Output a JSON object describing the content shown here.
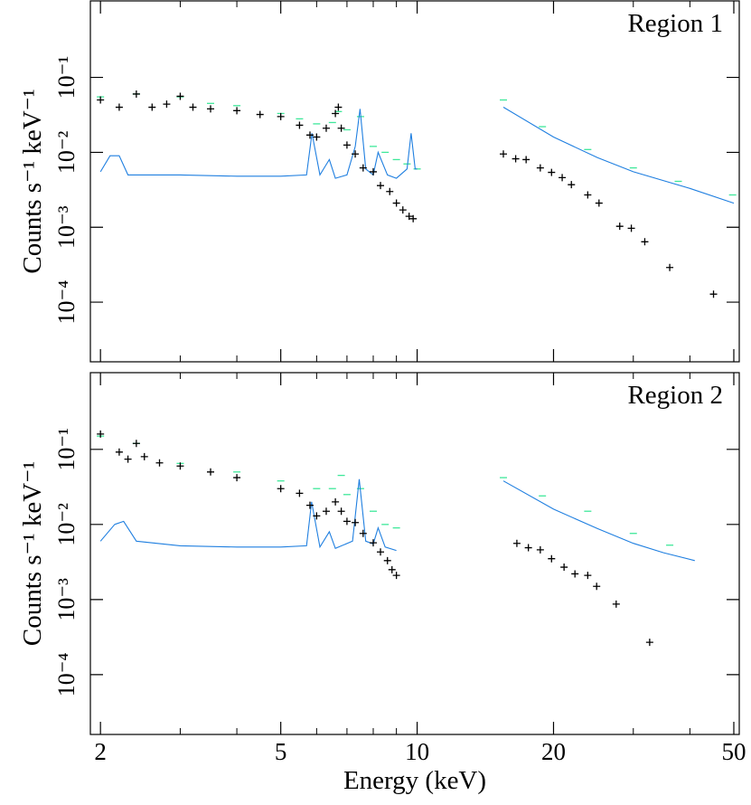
{
  "chart_data": [
    {
      "type": "line",
      "annotation": "Region 1",
      "ylabel": "Counts s⁻¹ keV⁻¹",
      "xscale": "log",
      "yscale": "log",
      "xlim": [
        1.9,
        51.4
      ],
      "ylim": [
        1.6e-05,
        1.05
      ],
      "xticks": [
        2,
        5,
        10,
        20,
        50
      ],
      "xminor": [
        3,
        4,
        6,
        7,
        8,
        9,
        30,
        40
      ],
      "show_xtick_labels": false,
      "yticks": [
        {
          "value": 0.1,
          "label": "10⁻¹"
        },
        {
          "value": 0.01,
          "label": "10⁻²"
        },
        {
          "value": 0.001,
          "label": "10⁻³"
        },
        {
          "value": 0.0001,
          "label": "10⁻⁴"
        }
      ],
      "series": [
        {
          "marker": "dash",
          "color": "#3ee89a",
          "x": [
            2,
            2.4,
            3,
            3.5,
            4,
            5,
            5.5,
            6,
            6.5,
            6.7,
            7,
            7.5,
            8,
            8.5,
            9,
            9.5,
            10
          ],
          "values": [
            0.055,
            0.06,
            0.055,
            0.045,
            0.042,
            0.033,
            0.028,
            0.024,
            0.025,
            0.035,
            0.02,
            0.03,
            0.012,
            0.01,
            0.008,
            0.007,
            0.006
          ]
        },
        {
          "marker": "dash",
          "color": "#3ee89a",
          "x": [
            15.5,
            18.9,
            23.8,
            30.0,
            37.7,
            49.7
          ],
          "values": [
            0.05,
            0.022,
            0.0109,
            0.0062,
            0.0041,
            0.0027
          ]
        },
        {
          "marker": "line",
          "color": "#1f7fe0",
          "x": [
            2,
            2.1,
            2.2,
            2.3,
            3,
            4,
            5,
            5.7,
            5.86,
            6.1,
            6.4,
            6.6,
            7.0,
            7.3,
            7.48,
            7.7,
            8.0,
            8.2,
            8.6,
            9.0,
            9.5,
            9.7,
            9.9,
            10
          ],
          "values": [
            0.0055,
            0.009,
            0.009,
            0.005,
            0.005,
            0.0048,
            0.0048,
            0.005,
            0.018,
            0.005,
            0.008,
            0.0045,
            0.005,
            0.012,
            0.038,
            0.006,
            0.005,
            0.01,
            0.005,
            0.0045,
            0.006,
            0.018,
            0.006,
            0.006
          ]
        },
        {
          "marker": "line",
          "color": "#1f7fe0",
          "x": [
            15.5,
            20,
            25,
            30,
            40,
            50
          ],
          "values": [
            0.04,
            0.016,
            0.0085,
            0.0055,
            0.0033,
            0.0021
          ]
        },
        {
          "marker": "cross",
          "color": "#000000",
          "x": [
            2,
            2.2,
            2.4,
            2.6,
            2.8,
            3.0,
            3.2,
            3.5,
            4,
            4.5,
            5,
            5.5,
            5.8,
            6.0,
            6.3,
            6.6,
            6.7,
            6.8,
            7.0,
            7.3,
            7.6,
            8.0,
            8.3,
            8.7,
            9.0,
            9.3,
            9.6,
            9.8
          ],
          "values": [
            0.05,
            0.04,
            0.06,
            0.04,
            0.044,
            0.056,
            0.04,
            0.038,
            0.036,
            0.032,
            0.03,
            0.023,
            0.017,
            0.016,
            0.021,
            0.033,
            0.04,
            0.021,
            0.0125,
            0.0095,
            0.0062,
            0.0055,
            0.0036,
            0.003,
            0.0021,
            0.0017,
            0.0014,
            0.0013
          ]
        },
        {
          "marker": "cross",
          "color": "#000000",
          "x": [
            15.5,
            16.5,
            17.4,
            18.7,
            19.8,
            20.9,
            21.9,
            23.8,
            25.2,
            28.0,
            29.7,
            31.8,
            36.1,
            45.1
          ],
          "values": [
            0.0095,
            0.0082,
            0.008,
            0.0062,
            0.0054,
            0.0046,
            0.0037,
            0.0027,
            0.0021,
            0.00103,
            0.00097,
            0.00064,
            0.00029,
            0.000128
          ]
        }
      ]
    },
    {
      "type": "line",
      "annotation": "Region 2",
      "ylabel": "Counts s⁻¹ keV⁻¹",
      "xlabel": "Energy (keV)",
      "xscale": "log",
      "yscale": "log",
      "xlim": [
        1.9,
        51.4
      ],
      "ylim": [
        1.6e-05,
        1.05
      ],
      "xticks": [
        2,
        5,
        10,
        20,
        50
      ],
      "xminor": [
        3,
        4,
        6,
        7,
        8,
        9,
        30,
        40
      ],
      "show_xtick_labels": true,
      "yticks": [
        {
          "value": 0.1,
          "label": "10⁻¹"
        },
        {
          "value": 0.01,
          "label": "10⁻²"
        },
        {
          "value": 0.001,
          "label": "10⁻³"
        },
        {
          "value": 0.0001,
          "label": "10⁻⁴"
        }
      ],
      "series": [
        {
          "marker": "dash",
          "color": "#3ee89a",
          "x": [
            2,
            2.4,
            3,
            4,
            5,
            6,
            6.5,
            6.8,
            7,
            7.5,
            8,
            8.5,
            9
          ],
          "values": [
            0.15,
            0.12,
            0.065,
            0.05,
            0.038,
            0.03,
            0.03,
            0.045,
            0.025,
            0.03,
            0.015,
            0.01,
            0.009
          ]
        },
        {
          "marker": "dash",
          "color": "#3ee89a",
          "x": [
            15.5,
            18.9,
            23.8,
            30.0,
            36.1
          ],
          "values": [
            0.042,
            0.024,
            0.015,
            0.0076,
            0.0053
          ]
        },
        {
          "marker": "line",
          "color": "#1f7fe0",
          "x": [
            2,
            2.15,
            2.25,
            2.4,
            3,
            4,
            5,
            5.7,
            5.85,
            6.1,
            6.4,
            6.6,
            7.2,
            7.45,
            7.7,
            8,
            8.2,
            8.5,
            9
          ],
          "values": [
            0.006,
            0.01,
            0.011,
            0.006,
            0.0052,
            0.005,
            0.005,
            0.0052,
            0.02,
            0.005,
            0.008,
            0.0048,
            0.006,
            0.04,
            0.006,
            0.0055,
            0.009,
            0.005,
            0.0045
          ]
        },
        {
          "marker": "line",
          "color": "#1f7fe0",
          "x": [
            15.5,
            20,
            25,
            30,
            35,
            41
          ],
          "values": [
            0.038,
            0.016,
            0.0088,
            0.0056,
            0.0042,
            0.0033
          ]
        },
        {
          "marker": "cross",
          "color": "#000000",
          "x": [
            2,
            2.2,
            2.3,
            2.4,
            2.5,
            2.7,
            3,
            3.5,
            4,
            5,
            5.5,
            5.8,
            6.0,
            6.3,
            6.6,
            6.8,
            7,
            7.3,
            7.6,
            8,
            8.3,
            8.6,
            8.8,
            9
          ],
          "values": [
            0.16,
            0.092,
            0.074,
            0.12,
            0.08,
            0.066,
            0.06,
            0.05,
            0.042,
            0.03,
            0.026,
            0.018,
            0.013,
            0.015,
            0.02,
            0.015,
            0.011,
            0.0106,
            0.0076,
            0.0057,
            0.0043,
            0.0033,
            0.0025,
            0.0021
          ]
        },
        {
          "marker": "cross",
          "color": "#000000",
          "x": [
            16.6,
            17.6,
            18.7,
            19.8,
            21.1,
            22.3,
            23.8,
            24.9,
            27.5,
            32.6
          ],
          "values": [
            0.0056,
            0.0049,
            0.0046,
            0.0035,
            0.0027,
            0.0022,
            0.0021,
            0.0015,
            0.00087,
            0.00027
          ]
        }
      ]
    }
  ]
}
